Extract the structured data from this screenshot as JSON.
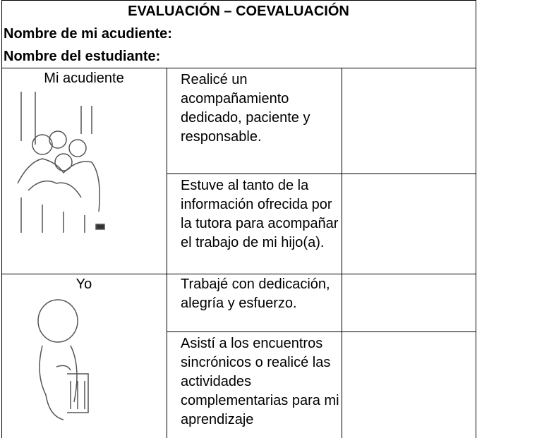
{
  "header": {
    "title": "EVALUACIÓN – COEVALUACIÓN",
    "fields": [
      "Nombre de mi acudiente:",
      "Nombre del estudiante:"
    ]
  },
  "table": {
    "groups": [
      {
        "label": "Mi acudiente",
        "items": [
          "Realicé un acompañamiento dedicado, paciente y responsable.",
          "Estuve al tanto de la información ofrecida por la tutora para acompañar el trabajo de mi hijo(a)."
        ]
      },
      {
        "label": "Yo",
        "items": [
          "Trabajé con dedicación, alegría y esfuerzo.",
          "Asistí a los encuentros sincrónicos o realicé las actividades complementarias para mi aprendizaje"
        ]
      }
    ]
  }
}
